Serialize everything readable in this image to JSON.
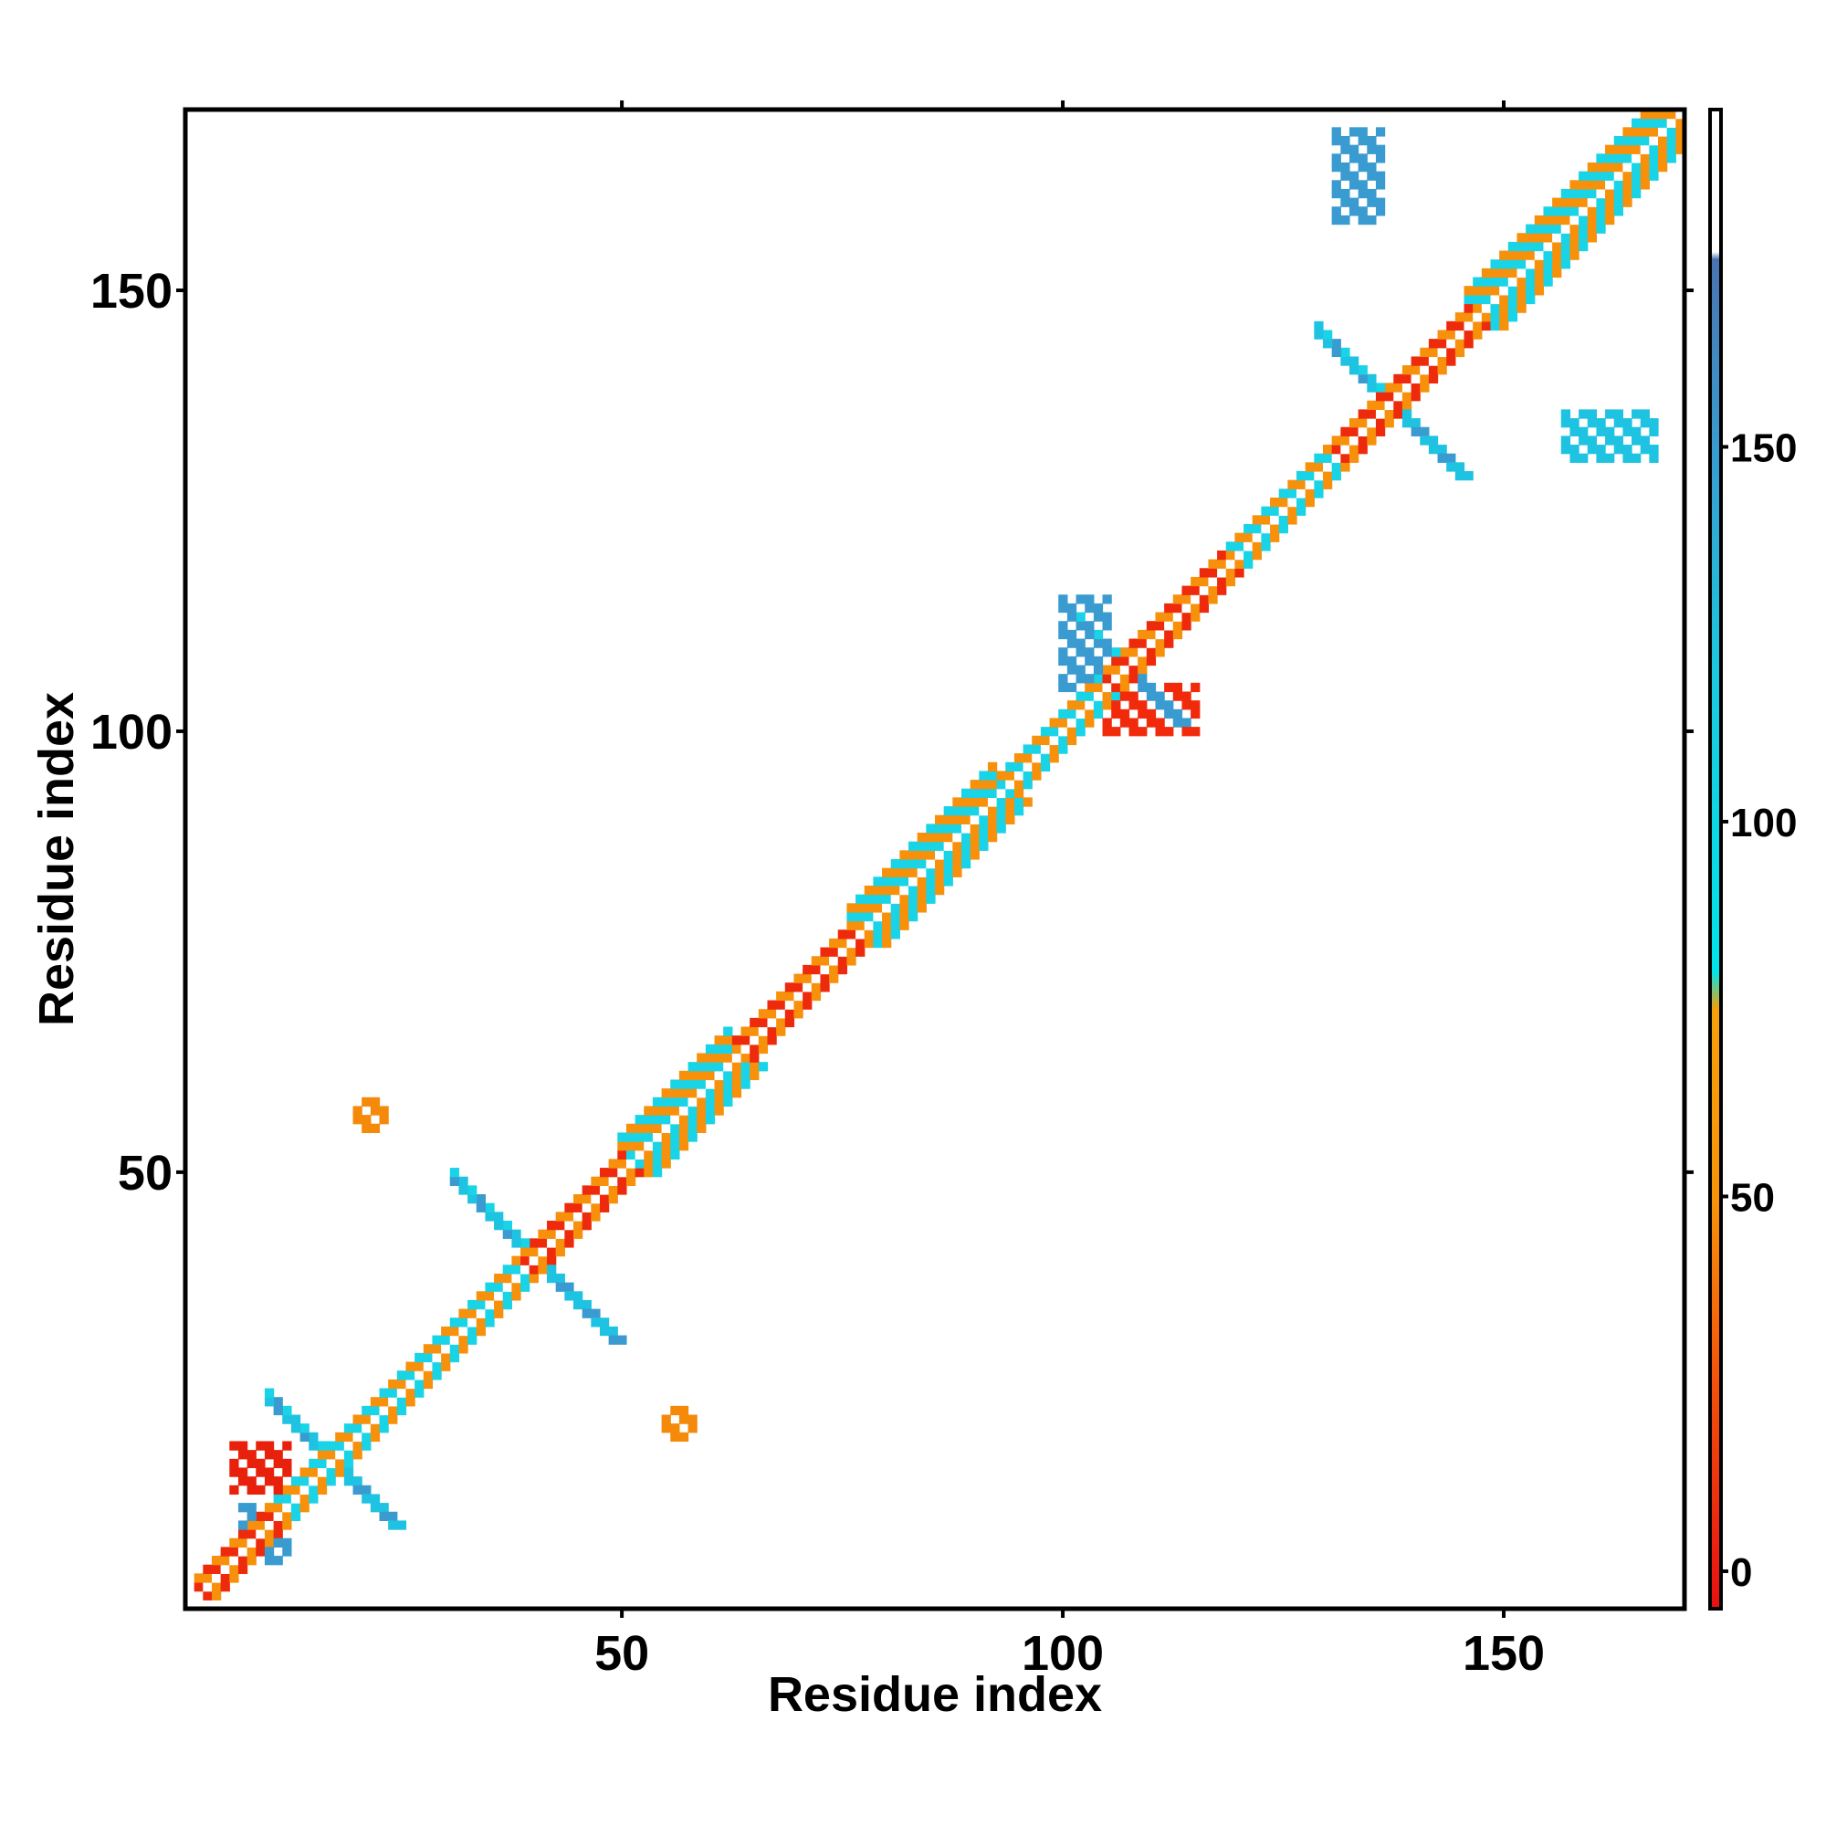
{
  "chart_data": {
    "type": "heatmap",
    "title": "",
    "xlabel": "Residue index",
    "ylabel": "Residue index",
    "xlim": [
      1,
      170
    ],
    "ylim": [
      1,
      170
    ],
    "x_ticks": [
      50,
      100,
      150
    ],
    "y_ticks": [
      50,
      100,
      150
    ],
    "grid": false,
    "legend": "colorbar-right",
    "colorbar": {
      "ticks": [
        0,
        50,
        100,
        150
      ],
      "range": [
        -5,
        195
      ],
      "segments": [
        {
          "from": -5,
          "to": 25,
          "color": "#e8210c"
        },
        {
          "from": 25,
          "to": 75,
          "color": "#f58a0a"
        },
        {
          "from": 75,
          "to": 175,
          "color": "#19d3e6"
        },
        {
          "from": 175,
          "to": 195,
          "color": "#ffffff"
        }
      ],
      "gradient": [
        {
          "value": -5,
          "color": "#e81010"
        },
        {
          "value": 25,
          "color": "#f2520c"
        },
        {
          "value": 50,
          "color": "#f7940a"
        },
        {
          "value": 75,
          "color": "#f5a00a"
        },
        {
          "value": 80,
          "color": "#00e5ea"
        },
        {
          "value": 120,
          "color": "#1cc8e0"
        },
        {
          "value": 150,
          "color": "#3a9bd0"
        },
        {
          "value": 175,
          "color": "#4a74b0"
        },
        {
          "value": 176,
          "color": "#ffffff"
        },
        {
          "value": 195,
          "color": "#ffffff"
        }
      ]
    },
    "diagonal_band": [
      {
        "from": 2,
        "to": 10,
        "mix": "orange-red",
        "width": 2
      },
      {
        "from": 10,
        "to": 22,
        "mix": "orange-cyan",
        "width": 2
      },
      {
        "from": 22,
        "to": 38,
        "mix": "orange-cyan",
        "width": 2
      },
      {
        "from": 38,
        "to": 50,
        "mix": "red-orange",
        "width": 2
      },
      {
        "from": 50,
        "to": 62,
        "mix": "cyan-orange",
        "width": 4
      },
      {
        "from": 62,
        "to": 76,
        "mix": "orange-red",
        "width": 2
      },
      {
        "from": 76,
        "to": 92,
        "mix": "orange-cyan",
        "width": 4
      },
      {
        "from": 92,
        "to": 104,
        "mix": "cyan-orange",
        "width": 2
      },
      {
        "from": 104,
        "to": 118,
        "mix": "red-orange",
        "width": 2
      },
      {
        "from": 118,
        "to": 130,
        "mix": "orange-cyan",
        "width": 2
      },
      {
        "from": 130,
        "to": 146,
        "mix": "red-orange",
        "width": 2
      },
      {
        "from": 146,
        "to": 170,
        "mix": "orange-cyan",
        "width": 4
      }
    ],
    "antiparallel_arms": [
      {
        "cx": 17,
        "cy": 17,
        "length": 7,
        "color": "#1ec3e2"
      },
      {
        "cx": 40,
        "cy": 40,
        "length": 9,
        "color": "#1ec3e2"
      },
      {
        "cx": 107,
        "cy": 107,
        "length": 6,
        "color": "#3a9bd0"
      },
      {
        "cx": 137,
        "cy": 137,
        "length": 8,
        "color": "#1ec3e2"
      }
    ],
    "off_diagonal_patches": [
      {
        "x": [
          131,
          136
        ],
        "y": [
          158,
          168
        ],
        "color": "#3a9bd0"
      },
      {
        "x": [
          157,
          167
        ],
        "y": [
          131,
          136
        ],
        "color": "#1ec3e2"
      },
      {
        "x": [
          105,
          115
        ],
        "y": [
          100,
          105
        ],
        "color": "#f12a0c"
      },
      {
        "x": [
          100,
          105
        ],
        "y": [
          105,
          115
        ],
        "color": "#3a9bd0"
      },
      {
        "x": [
          7,
          12
        ],
        "y": [
          6,
          12
        ],
        "color": "#3a9bd0"
      },
      {
        "x": [
          6,
          12
        ],
        "y": [
          14,
          19
        ],
        "color": "#e8210c"
      },
      {
        "x": [
          55,
          58
        ],
        "y": [
          20,
          23
        ],
        "color": "#f58a0a"
      },
      {
        "x": [
          20,
          23
        ],
        "y": [
          55,
          58
        ],
        "color": "#f58a0a"
      }
    ]
  }
}
